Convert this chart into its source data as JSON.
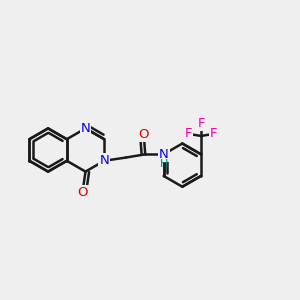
{
  "bg_color": "#efefef",
  "bond_color": "#1a1a1a",
  "bond_width": 1.8,
  "atom_colors": {
    "N": "#0000ee",
    "O": "#dd0000",
    "F": "#ee00aa",
    "NH_color": "#008080"
  },
  "BL": 0.72,
  "xlim": [
    0,
    10
  ],
  "ylim": [
    0,
    10
  ]
}
